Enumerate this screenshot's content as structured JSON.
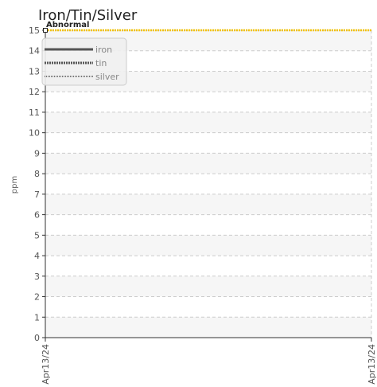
{
  "chart_data": {
    "type": "line",
    "title": "Iron/Tin/Silver",
    "y_label": "ppm",
    "categories": [
      "Apr13/24",
      "Apr13/24"
    ],
    "series": [
      {
        "name": "iron",
        "color": "#555555",
        "dash": "solid",
        "values": [
          null,
          null
        ]
      },
      {
        "name": "tin",
        "color": "#555555",
        "dash": "dotted",
        "values": [
          null,
          null
        ]
      },
      {
        "name": "silver",
        "color": "#777777",
        "dash": "fine-dotted",
        "values": [
          null,
          null
        ]
      }
    ],
    "threshold": {
      "label": "Abnormal",
      "value": 15,
      "color": "#f2c200"
    },
    "ylim": [
      0,
      15
    ],
    "yticks": [
      0,
      1,
      2,
      3,
      4,
      5,
      6,
      7,
      8,
      9,
      10,
      11,
      12,
      13,
      14,
      15
    ],
    "grid": true,
    "legend": "top-left"
  }
}
